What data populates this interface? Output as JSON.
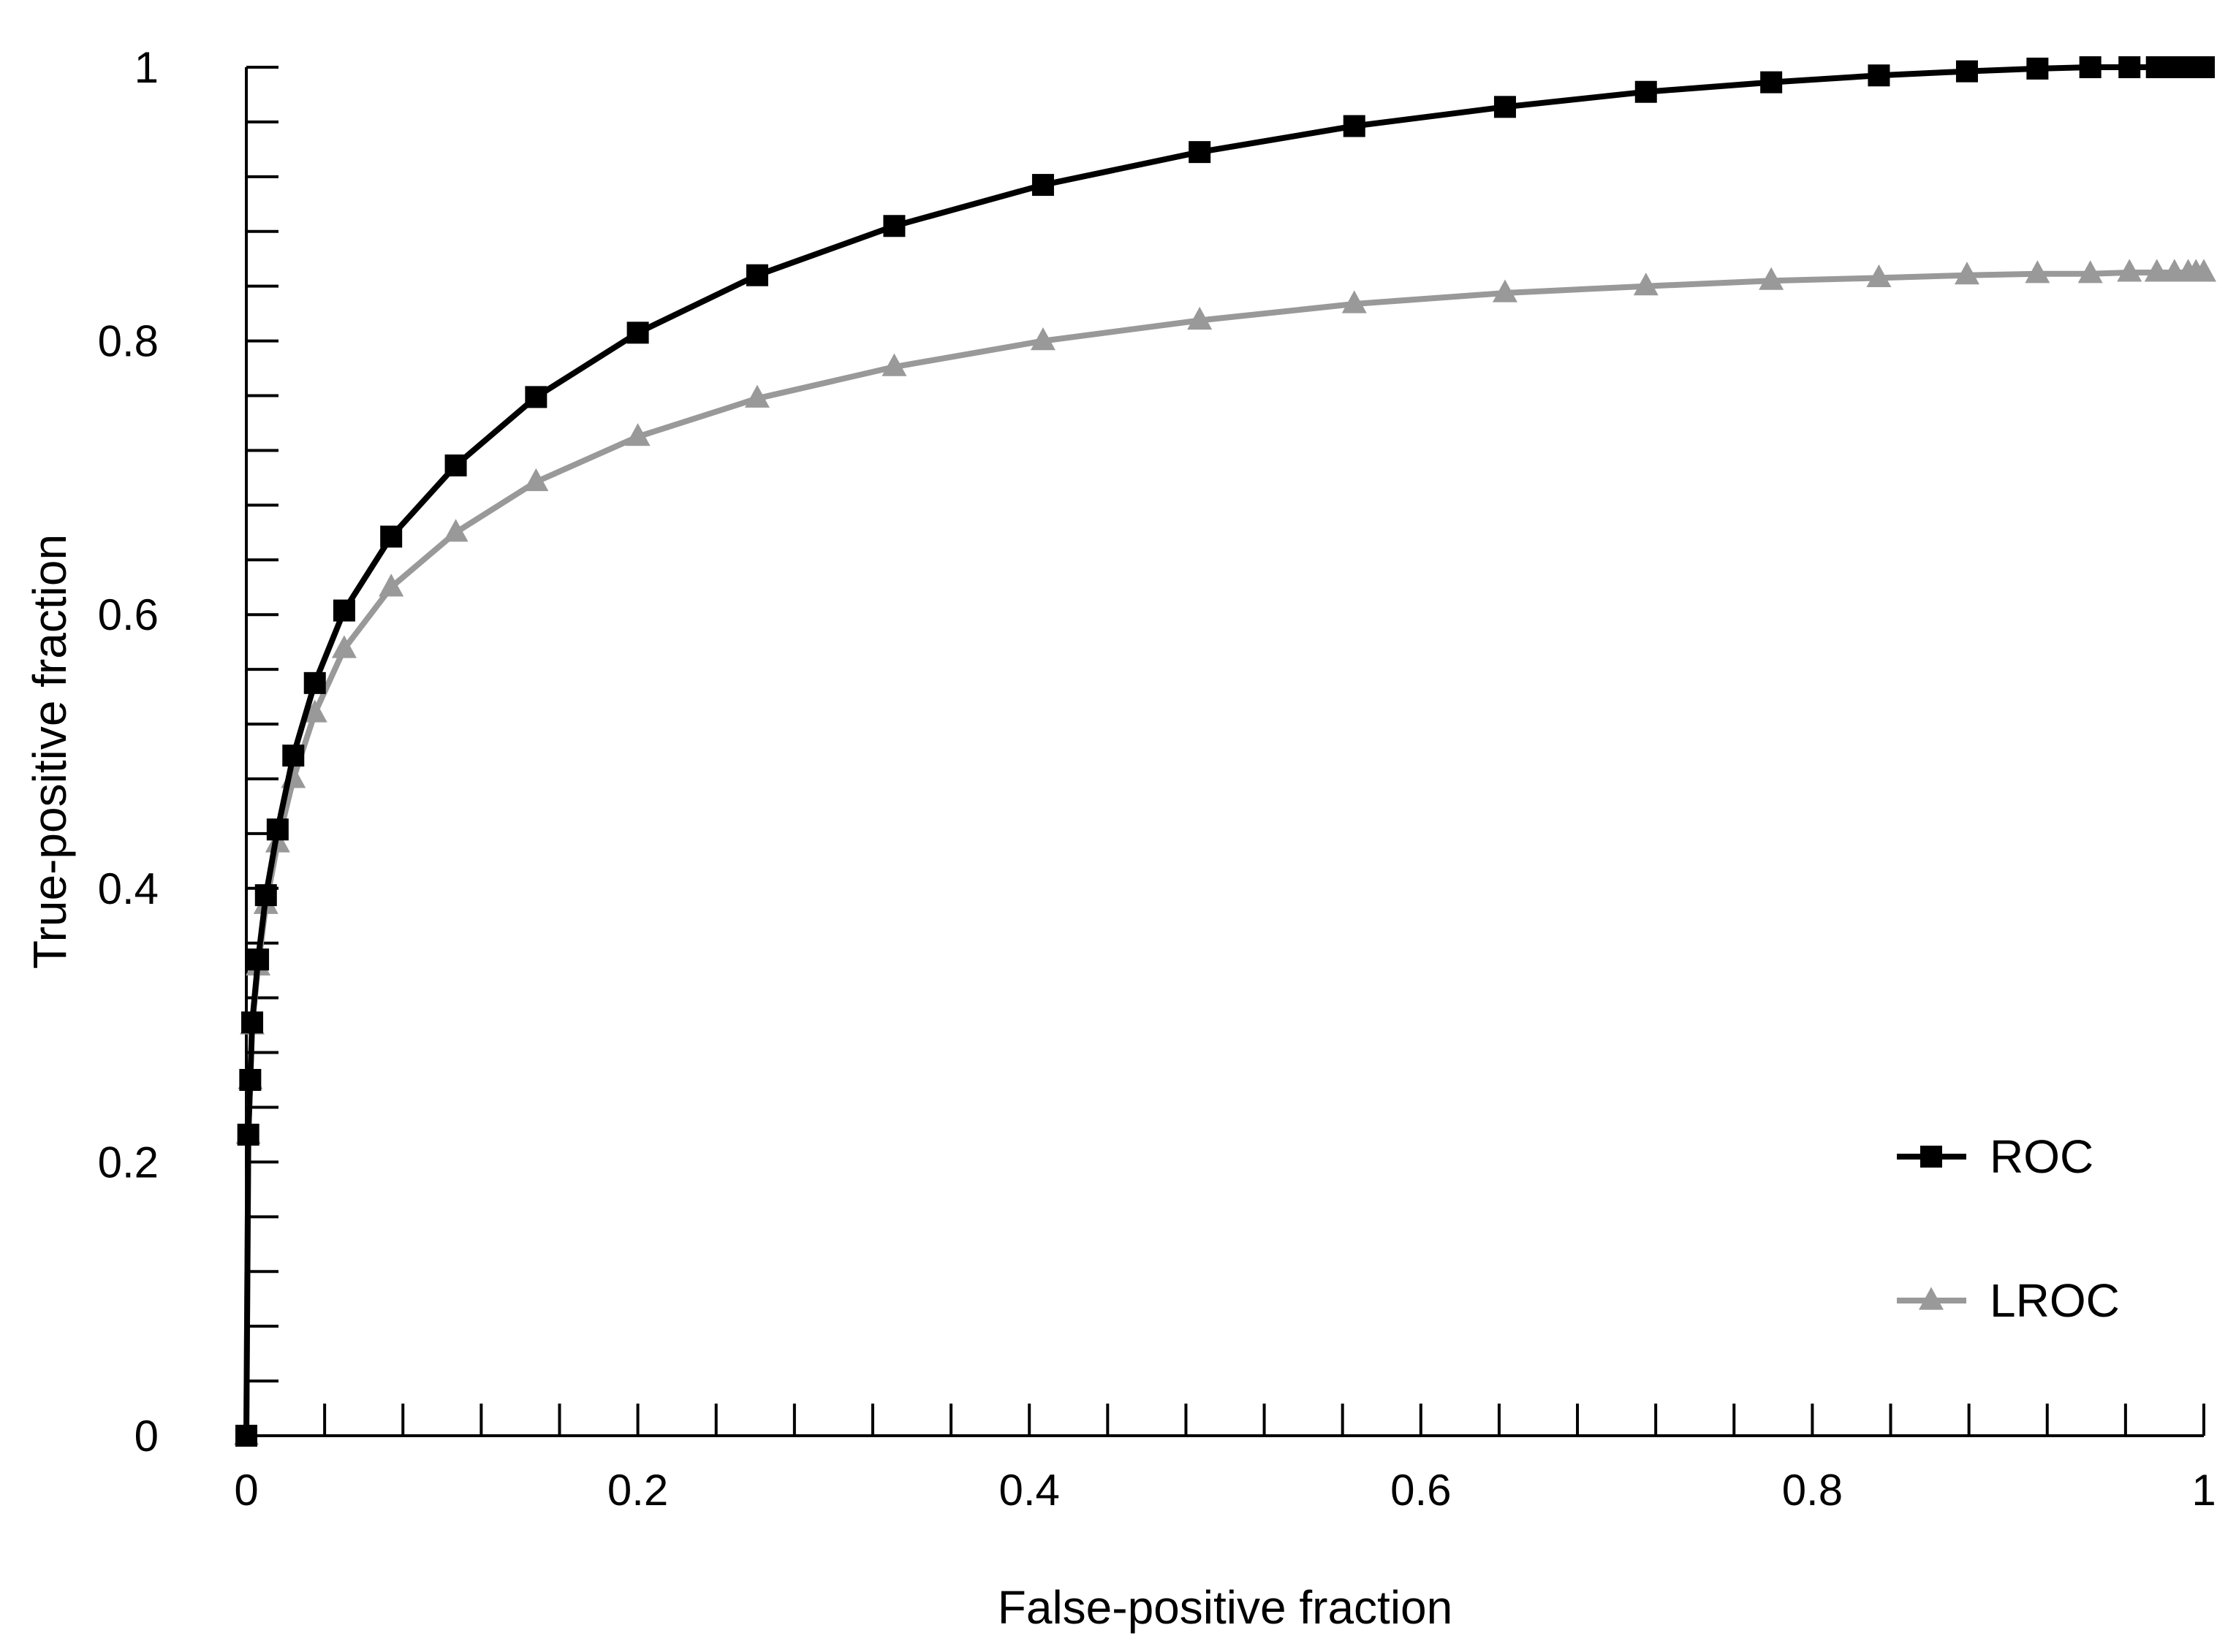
{
  "chart_data": {
    "type": "line",
    "xlabel": "False-positive fraction",
    "ylabel": "True-positive fraction",
    "xlim": [
      0,
      1
    ],
    "ylim": [
      0,
      1
    ],
    "x_ticks": [
      0,
      0.2,
      0.4,
      0.6,
      0.8,
      1
    ],
    "y_ticks": [
      0,
      0.2,
      0.4,
      0.6,
      0.8,
      1
    ],
    "x_tick_labels": [
      "0",
      "0.2",
      "0.4",
      "0.6",
      "0.8",
      "1"
    ],
    "y_tick_labels": [
      "0",
      "0.2",
      "0.4",
      "0.6",
      "0.8",
      "1"
    ],
    "grid": false,
    "legend_position": "bottom-right",
    "series": [
      {
        "name": "ROC",
        "color": "#000000",
        "marker": "square",
        "x": [
          0,
          0.001,
          0.002,
          0.003,
          0.006,
          0.01,
          0.016,
          0.024,
          0.035,
          0.05,
          0.074,
          0.107,
          0.148,
          0.2,
          0.261,
          0.331,
          0.407,
          0.487,
          0.566,
          0.643,
          0.715,
          0.779,
          0.834,
          0.879,
          0.915,
          0.942,
          0.962,
          0.976,
          0.985,
          0.992,
          0.996,
          1.0
        ],
        "y": [
          0,
          0.22,
          0.26,
          0.302,
          0.348,
          0.395,
          0.443,
          0.497,
          0.55,
          0.603,
          0.657,
          0.709,
          0.759,
          0.806,
          0.848,
          0.884,
          0.914,
          0.938,
          0.957,
          0.971,
          0.982,
          0.989,
          0.994,
          0.997,
          0.999,
          1.0,
          1.0,
          1.0,
          1.0,
          1.0,
          1.0,
          1.0
        ]
      },
      {
        "name": "LROC",
        "color": "#999999",
        "marker": "triangle",
        "x": [
          0,
          0.001,
          0.002,
          0.003,
          0.006,
          0.01,
          0.016,
          0.024,
          0.035,
          0.05,
          0.074,
          0.107,
          0.148,
          0.2,
          0.261,
          0.331,
          0.407,
          0.487,
          0.566,
          0.643,
          0.715,
          0.779,
          0.834,
          0.879,
          0.915,
          0.942,
          0.962,
          0.976,
          0.985,
          0.992,
          0.996,
          1.0
        ],
        "y": [
          0,
          0.22,
          0.26,
          0.3,
          0.343,
          0.388,
          0.433,
          0.48,
          0.528,
          0.575,
          0.62,
          0.66,
          0.697,
          0.73,
          0.758,
          0.781,
          0.8,
          0.815,
          0.827,
          0.835,
          0.84,
          0.844,
          0.846,
          0.848,
          0.849,
          0.849,
          0.85,
          0.85,
          0.85,
          0.85,
          0.85,
          0.85
        ]
      }
    ]
  }
}
